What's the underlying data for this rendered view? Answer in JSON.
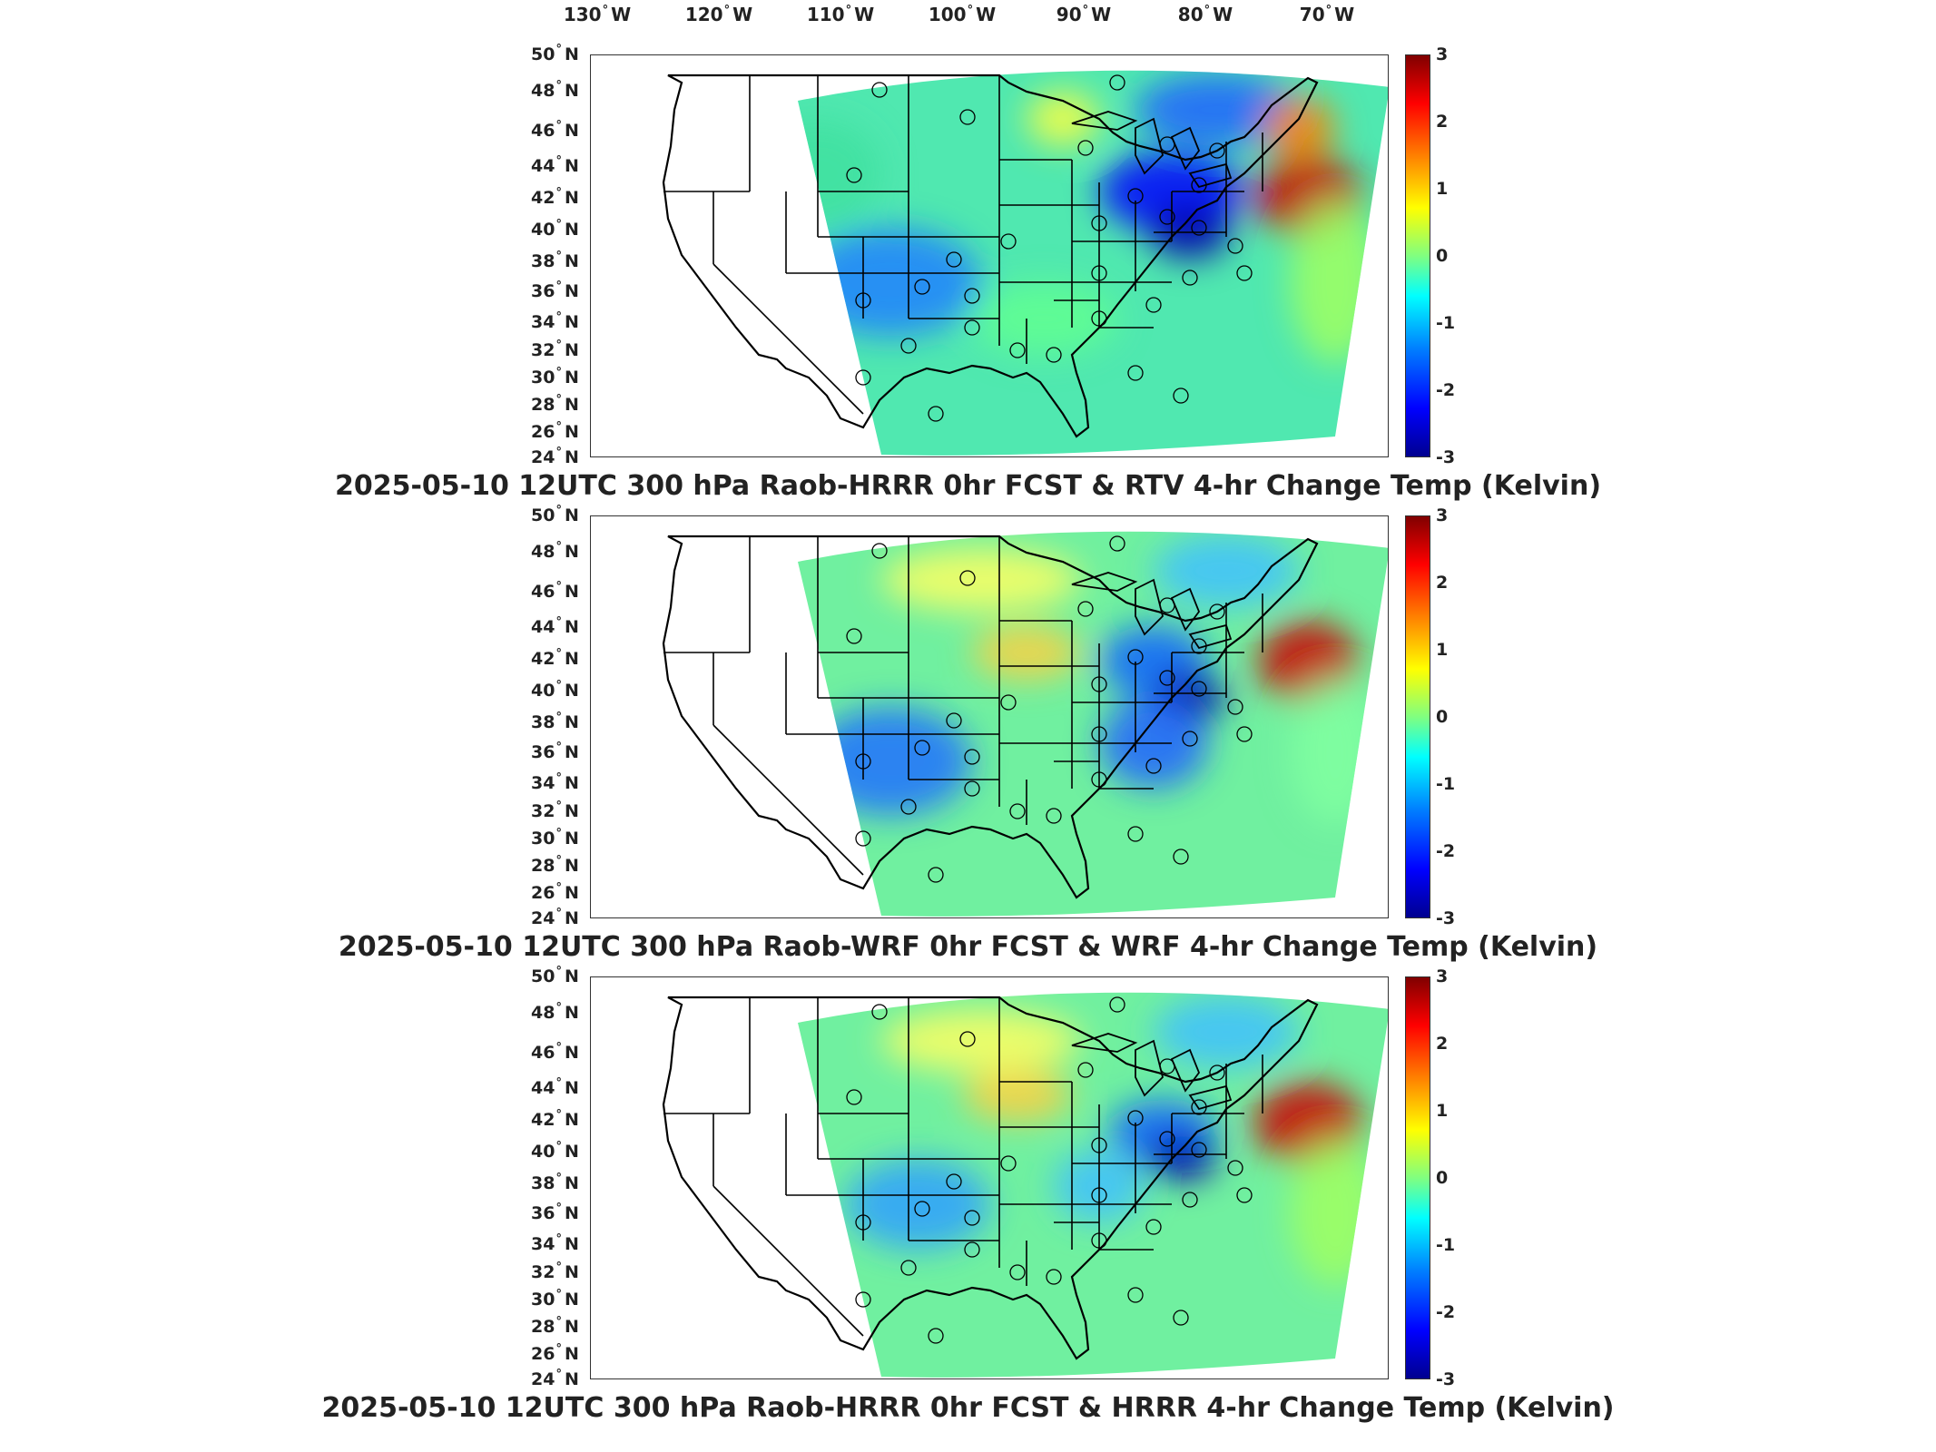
{
  "lon_labels": [
    "130",
    "120",
    "110",
    "100",
    "90",
    "80",
    "70"
  ],
  "lon_suffix": "W",
  "lat_labels": [
    "50",
    "48",
    "46",
    "44",
    "42",
    "40",
    "38",
    "36",
    "34",
    "32",
    "30",
    "28",
    "26",
    "24"
  ],
  "lat_suffix": "N",
  "deg_symbol": "°",
  "colorbar_ticks": [
    "3",
    "2",
    "1",
    "0",
    "-1",
    "-2",
    "-3"
  ],
  "panels": [
    {
      "title": "2025-05-10 12UTC 300 hPa Raob-HRRR 0hr FCST & RTV 4-hr Change Temp (Kelvin)"
    },
    {
      "title": "2025-05-10 12UTC 300 hPa Raob-WRF 0hr FCST & WRF 4-hr Change Temp (Kelvin)"
    },
    {
      "title": "2025-05-10 12UTC 300 hPa Raob-HRRR 0hr FCST & HRRR 4-hr Change Temp (Kelvin)"
    }
  ],
  "colors": {
    "frame": "#333333",
    "border": "#000000",
    "blue": "#0000ff",
    "red": "#cc0000",
    "green": "#80ff80"
  }
}
